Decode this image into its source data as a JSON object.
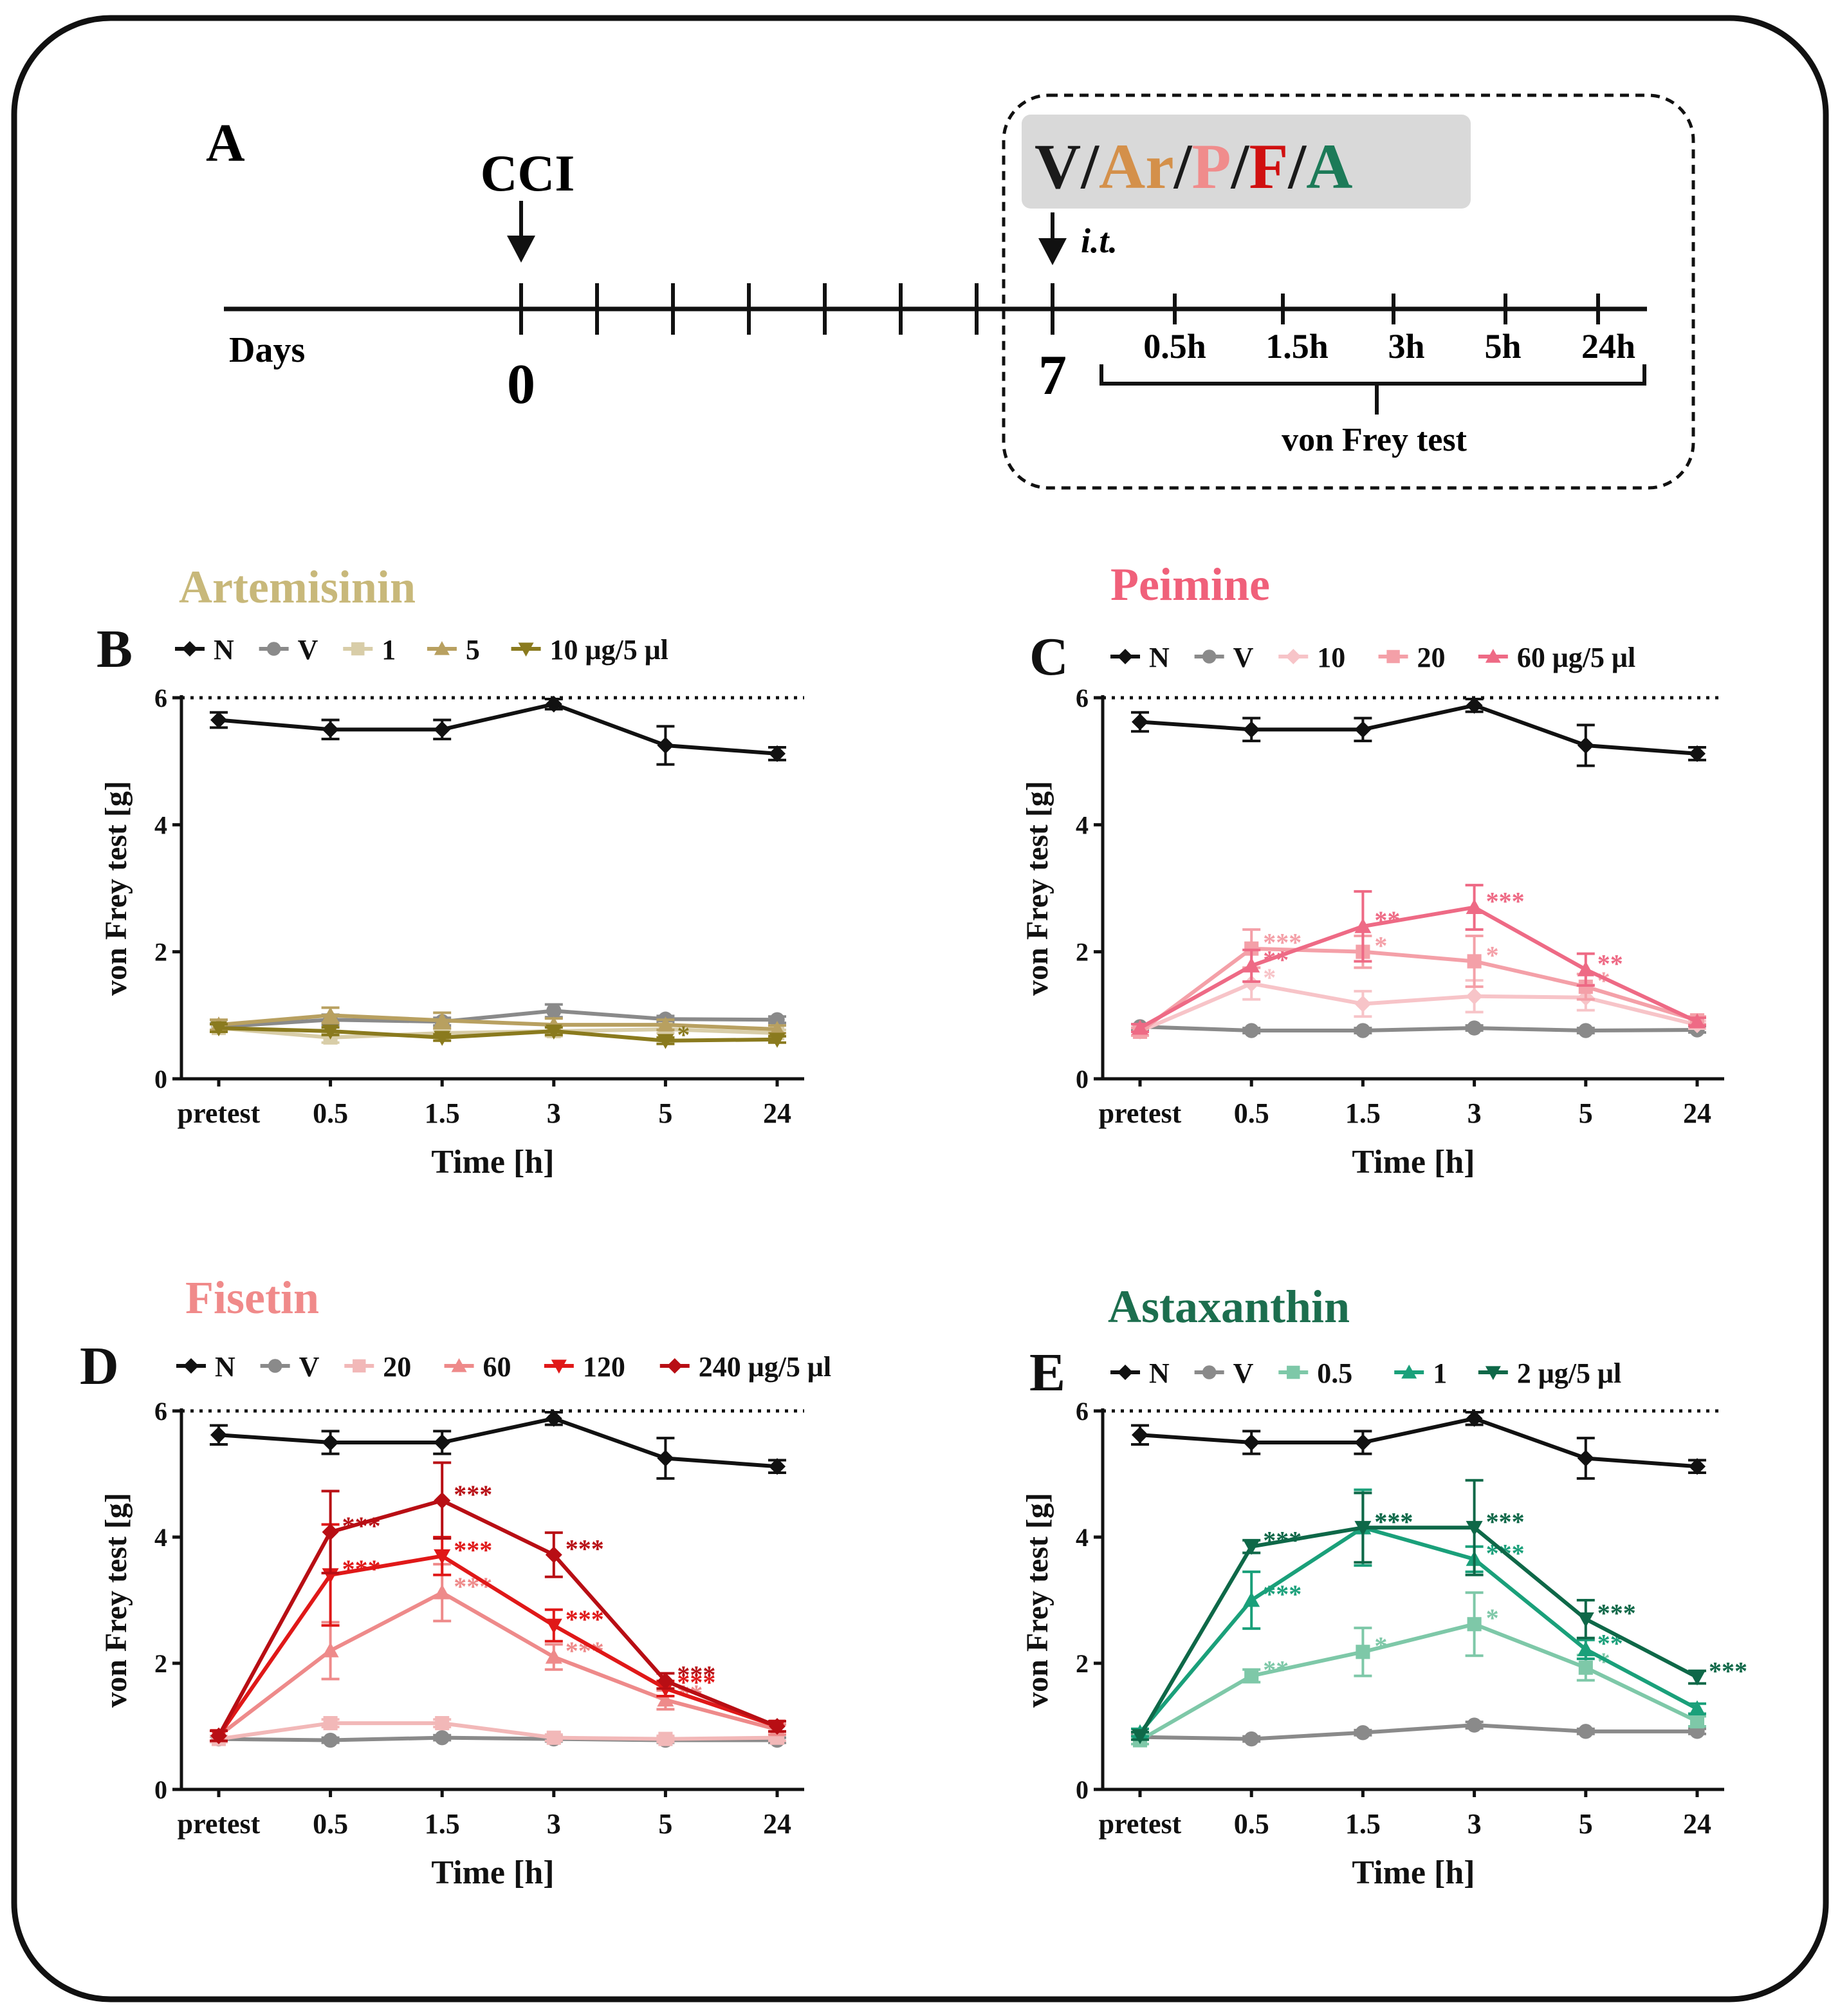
{
  "timeline": {
    "panel_letter": "A",
    "event_label": "CCI",
    "axis_label": "Days",
    "day_start": "0",
    "day_injection": "7",
    "route_label": "i.t.",
    "drugs": [
      {
        "label": "V",
        "color": "#1a1a1a"
      },
      {
        "label": "/",
        "color": "#1a1a1a"
      },
      {
        "label": "Ar",
        "color": "#d4904a"
      },
      {
        "label": "/",
        "color": "#1a1a1a"
      },
      {
        "label": "P",
        "color": "#f08c8c"
      },
      {
        "label": "/",
        "color": "#1a1a1a"
      },
      {
        "label": "F",
        "color": "#d01010"
      },
      {
        "label": "/",
        "color": "#1a1a1a"
      },
      {
        "label": "A",
        "color": "#1c7a58"
      }
    ],
    "timepoints": [
      "0.5h",
      "1.5h",
      "3h",
      "5h",
      "24h"
    ],
    "test_label": "von Frey test"
  },
  "chart_data": [
    {
      "type": "line",
      "panel": "B",
      "title": "Artemisinin",
      "title_color": "#c8b87a",
      "xlabel": "Time [h]",
      "ylabel": "von Frey test [g]",
      "categories": [
        "pretest",
        "0.5",
        "1.5",
        "3",
        "5",
        "24"
      ],
      "ylim": [
        0,
        6
      ],
      "yticks": [
        "0",
        "2",
        "4",
        "6"
      ],
      "reference_line": 6,
      "legend_suffix": "μg/5 μl",
      "series": [
        {
          "name": "N",
          "color": "#111111",
          "marker": "diamond",
          "values": [
            5.65,
            5.5,
            5.5,
            5.9,
            5.25,
            5.12
          ],
          "err": [
            0.12,
            0.15,
            0.15,
            0.08,
            0.3,
            0.1
          ],
          "sig": [
            "",
            "",
            "",
            "",
            "",
            ""
          ]
        },
        {
          "name": "V",
          "color": "#8a8a8a",
          "marker": "circle",
          "values": [
            0.82,
            0.93,
            0.9,
            1.07,
            0.94,
            0.93
          ],
          "err": [
            0.05,
            0.08,
            0.06,
            0.1,
            0.05,
            0.05
          ],
          "sig": [
            "",
            "",
            "",
            "",
            "",
            ""
          ]
        },
        {
          "name": "1",
          "color": "#d8cda8",
          "marker": "square",
          "values": [
            0.8,
            0.65,
            0.72,
            0.75,
            0.78,
            0.72
          ],
          "err": [
            0.06,
            0.08,
            0.06,
            0.08,
            0.06,
            0.05
          ],
          "sig": [
            "",
            "",
            "",
            "",
            "",
            ""
          ]
        },
        {
          "name": "5",
          "color": "#b8a060",
          "marker": "triangle-up",
          "values": [
            0.85,
            1.0,
            0.92,
            0.85,
            0.85,
            0.78
          ],
          "err": [
            0.08,
            0.12,
            0.12,
            0.1,
            0.08,
            0.06
          ],
          "sig": [
            "",
            "",
            "",
            "",
            "",
            ""
          ]
        },
        {
          "name": "10",
          "color": "#8a7a1e",
          "marker": "triangle-down",
          "values": [
            0.8,
            0.75,
            0.65,
            0.75,
            0.6,
            0.62
          ],
          "err": [
            0.06,
            0.06,
            0.05,
            0.06,
            0.05,
            0.05
          ],
          "sig": [
            "",
            "",
            "",
            "",
            "*",
            ""
          ]
        }
      ]
    },
    {
      "type": "line",
      "panel": "C",
      "title": "Peimine",
      "title_color": "#f0607a",
      "xlabel": "Time [h]",
      "ylabel": "von Frey test [g]",
      "categories": [
        "pretest",
        "0.5",
        "1.5",
        "3",
        "5",
        "24"
      ],
      "ylim": [
        0,
        6
      ],
      "yticks": [
        "0",
        "2",
        "4",
        "6"
      ],
      "reference_line": 6,
      "legend_suffix": "μg/5 μl",
      "series": [
        {
          "name": "N",
          "color": "#111111",
          "marker": "diamond",
          "values": [
            5.62,
            5.5,
            5.5,
            5.88,
            5.25,
            5.12
          ],
          "err": [
            0.15,
            0.18,
            0.18,
            0.1,
            0.32,
            0.1
          ],
          "sig": [
            "",
            "",
            "",
            "",
            "",
            ""
          ]
        },
        {
          "name": "V",
          "color": "#8a8a8a",
          "marker": "circle",
          "values": [
            0.82,
            0.76,
            0.76,
            0.8,
            0.76,
            0.77
          ],
          "err": [
            0.04,
            0.04,
            0.04,
            0.04,
            0.04,
            0.04
          ],
          "sig": [
            "",
            "",
            "",
            "",
            "",
            ""
          ]
        },
        {
          "name": "10",
          "color": "#f7c4c8",
          "marker": "diamond",
          "values": [
            0.75,
            1.5,
            1.18,
            1.3,
            1.28,
            0.85
          ],
          "err": [
            0.06,
            0.25,
            0.2,
            0.25,
            0.2,
            0.06
          ],
          "sig": [
            "",
            "*",
            "",
            "",
            "",
            ""
          ]
        },
        {
          "name": "20",
          "color": "#f4a0a8",
          "marker": "square",
          "values": [
            0.74,
            2.05,
            2.0,
            1.85,
            1.45,
            0.92
          ],
          "err": [
            0.06,
            0.3,
            0.25,
            0.4,
            0.2,
            0.06
          ],
          "sig": [
            "",
            "***",
            "*",
            "*",
            "*",
            ""
          ]
        },
        {
          "name": "60",
          "color": "#ee6a85",
          "marker": "triangle-up",
          "values": [
            0.8,
            1.78,
            2.4,
            2.7,
            1.72,
            0.9
          ],
          "err": [
            0.06,
            0.25,
            0.55,
            0.35,
            0.25,
            0.06
          ],
          "sig": [
            "",
            "**",
            "**",
            "***",
            "**",
            ""
          ]
        }
      ]
    },
    {
      "type": "line",
      "panel": "D",
      "title": "Fisetin",
      "title_color": "#f08a8a",
      "xlabel": "Time [h]",
      "ylabel": "von Frey test [g]",
      "categories": [
        "pretest",
        "0.5",
        "1.5",
        "3",
        "5",
        "24"
      ],
      "ylim": [
        0,
        6
      ],
      "yticks": [
        "0",
        "2",
        "4",
        "6"
      ],
      "reference_line": 6,
      "legend_suffix": "μg/5 μl",
      "series": [
        {
          "name": "N",
          "color": "#111111",
          "marker": "diamond",
          "values": [
            5.62,
            5.5,
            5.5,
            5.88,
            5.25,
            5.12
          ],
          "err": [
            0.15,
            0.18,
            0.18,
            0.1,
            0.32,
            0.1
          ],
          "sig": [
            "",
            "",
            "",
            "",
            "",
            ""
          ]
        },
        {
          "name": "V",
          "color": "#8a8a8a",
          "marker": "circle",
          "values": [
            0.8,
            0.78,
            0.82,
            0.8,
            0.78,
            0.78
          ],
          "err": [
            0.04,
            0.04,
            0.04,
            0.04,
            0.04,
            0.04
          ],
          "sig": [
            "",
            "",
            "",
            "",
            "",
            ""
          ]
        },
        {
          "name": "20",
          "color": "#f2b8b8",
          "marker": "square",
          "values": [
            0.8,
            1.05,
            1.05,
            0.82,
            0.8,
            0.82
          ],
          "err": [
            0.05,
            0.06,
            0.06,
            0.05,
            0.05,
            0.05
          ],
          "sig": [
            "",
            "",
            "",
            "",
            "",
            ""
          ]
        },
        {
          "name": "60",
          "color": "#ee8a8a",
          "marker": "triangle-up",
          "values": [
            0.85,
            2.2,
            3.12,
            2.1,
            1.42,
            0.95
          ],
          "err": [
            0.08,
            0.45,
            0.45,
            0.2,
            0.15,
            0.08
          ],
          "sig": [
            "",
            "",
            "***",
            "***",
            "**",
            ""
          ]
        },
        {
          "name": "120",
          "color": "#e01818",
          "marker": "triangle-down",
          "values": [
            0.85,
            3.4,
            3.7,
            2.6,
            1.6,
            1.0
          ],
          "err": [
            0.08,
            0.8,
            0.3,
            0.25,
            0.12,
            0.08
          ],
          "sig": [
            "",
            "***",
            "***",
            "***",
            "***",
            ""
          ]
        },
        {
          "name": "240",
          "color": "#b80e14",
          "marker": "diamond",
          "values": [
            0.85,
            4.08,
            4.58,
            3.72,
            1.72,
            1.0
          ],
          "err": [
            0.08,
            0.65,
            0.6,
            0.35,
            0.12,
            0.08
          ],
          "sig": [
            "",
            "***",
            "***",
            "***",
            "***",
            ""
          ]
        }
      ]
    },
    {
      "type": "line",
      "panel": "E",
      "title": "Astaxanthin",
      "title_color": "#1c6e4e",
      "xlabel": "Time [h]",
      "ylabel": "von Frey test [g]",
      "categories": [
        "pretest",
        "0.5",
        "1.5",
        "3",
        "5",
        "24"
      ],
      "ylim": [
        0,
        6
      ],
      "yticks": [
        "0",
        "2",
        "4",
        "6"
      ],
      "reference_line": 6,
      "legend_suffix": "μg/5 μl",
      "series": [
        {
          "name": "N",
          "color": "#111111",
          "marker": "diamond",
          "values": [
            5.62,
            5.5,
            5.5,
            5.88,
            5.25,
            5.12
          ],
          "err": [
            0.15,
            0.18,
            0.18,
            0.1,
            0.32,
            0.1
          ],
          "sig": [
            "",
            "",
            "",
            "",
            "",
            ""
          ]
        },
        {
          "name": "V",
          "color": "#8a8a8a",
          "marker": "circle",
          "values": [
            0.83,
            0.8,
            0.9,
            1.02,
            0.92,
            0.92
          ],
          "err": [
            0.04,
            0.04,
            0.04,
            0.05,
            0.04,
            0.04
          ],
          "sig": [
            "",
            "",
            "",
            "",
            "",
            ""
          ]
        },
        {
          "name": "0.5",
          "color": "#7ec8a8",
          "marker": "square",
          "values": [
            0.78,
            1.8,
            2.18,
            2.62,
            1.93,
            1.08
          ],
          "err": [
            0.06,
            0.1,
            0.38,
            0.5,
            0.2,
            0.08
          ],
          "sig": [
            "",
            "**",
            "*",
            "*",
            "*",
            ""
          ]
        },
        {
          "name": "1",
          "color": "#1aa07a",
          "marker": "triangle-up",
          "values": [
            0.9,
            3.0,
            4.15,
            3.65,
            2.22,
            1.28
          ],
          "err": [
            0.06,
            0.45,
            0.6,
            0.2,
            0.15,
            0.08
          ],
          "sig": [
            "",
            "***",
            "***",
            "***",
            "**",
            ""
          ]
        },
        {
          "name": "2",
          "color": "#0e6848",
          "marker": "triangle-down",
          "values": [
            0.85,
            3.85,
            4.15,
            4.15,
            2.7,
            1.78
          ],
          "err": [
            0.06,
            0.1,
            0.55,
            0.75,
            0.3,
            0.1
          ],
          "sig": [
            "",
            "***",
            "***",
            "***",
            "***",
            "***"
          ]
        }
      ]
    }
  ]
}
